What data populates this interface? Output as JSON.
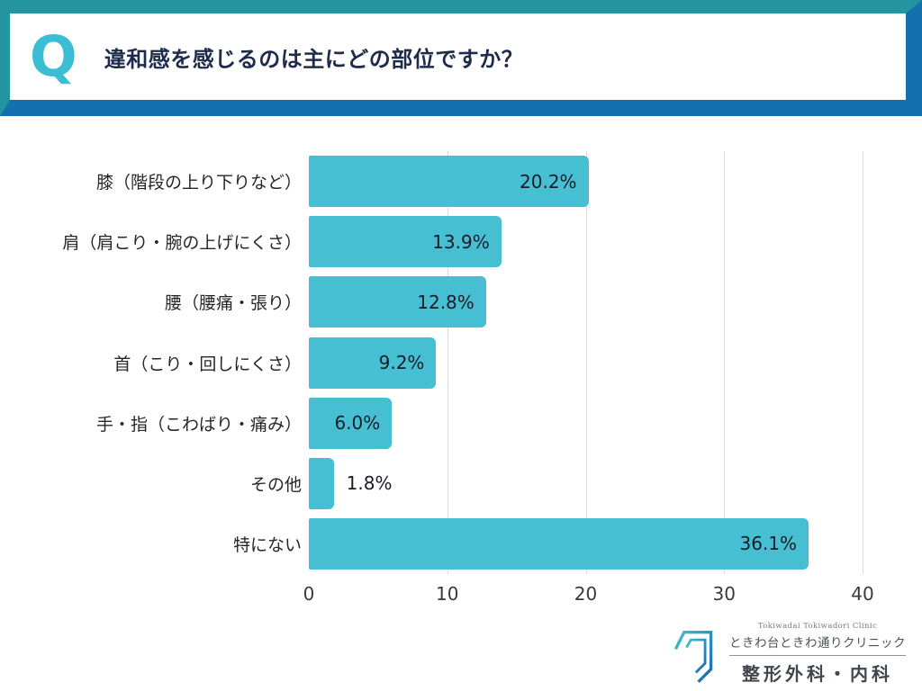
{
  "header": {
    "q_label": "Q",
    "question": "違和感を感じるのは主にどの部位ですか？"
  },
  "chart_data": {
    "type": "bar",
    "orientation": "horizontal",
    "title": "",
    "xlabel": "",
    "ylabel": "",
    "categories": [
      "膝（階段の上り下りなど）",
      "肩（肩こり・腕の上げにくさ）",
      "腰（腰痛・張り）",
      "首（こり・回しにくさ）",
      "手・指（こわばり・痛み）",
      "その他",
      "特にない"
    ],
    "values": [
      20.2,
      13.9,
      12.8,
      9.2,
      6.0,
      1.8,
      36.1
    ],
    "value_labels": [
      "20.2%",
      "13.9%",
      "12.8%",
      "9.2%",
      "6.0%",
      "1.8%",
      "36.1%"
    ],
    "xlim": [
      0,
      40
    ],
    "x_ticks": [
      0,
      10,
      20,
      30,
      40
    ],
    "grid": true,
    "legend": false
  },
  "footer": {
    "clinic_en": "Tokiwadai Tokiwadori Clinic",
    "clinic_jp": "ときわ台ときわ通りクリニック",
    "department": "整形外科・内科"
  },
  "colors": {
    "frame_teal": "#2494A1",
    "frame_blue": "#1571AE",
    "q_teal": "#3BBDD4",
    "bar": "#47BFD2",
    "gridline": "#D9D9D9",
    "title_text": "#1E2B4C",
    "value_text": "#1B1B27"
  }
}
